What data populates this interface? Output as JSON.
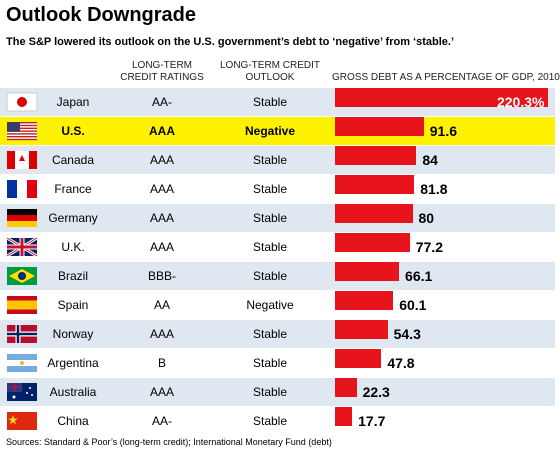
{
  "chart_data": {
    "type": "bar",
    "orientation": "horizontal",
    "title": "Outlook Downgrade",
    "subtitle": "The S&P lowered its outlook on the U.S. government’s debt to ‘negative’ from ‘stable.’",
    "column_headers": [
      "LONG-TERM CREDIT RATINGS",
      "LONG-TERM CREDIT OUTLOOK",
      "GROSS DEBT AS A PERCENTAGE OF GDP, 2010"
    ],
    "categories": [
      "Japan",
      "U.S.",
      "Canada",
      "France",
      "Germany",
      "U.K.",
      "Brazil",
      "Spain",
      "Norway",
      "Argentina",
      "Australia",
      "China"
    ],
    "ratings": [
      "AA-",
      "AAA",
      "AAA",
      "AAA",
      "AAA",
      "AAA",
      "BBB-",
      "AA",
      "AAA",
      "B",
      "AAA",
      "AA-"
    ],
    "outlooks": [
      "Stable",
      "Negative",
      "Stable",
      "Stable",
      "Stable",
      "Stable",
      "Stable",
      "Negative",
      "Stable",
      "Stable",
      "Stable",
      "Stable"
    ],
    "values": [
      220.3,
      91.6,
      84,
      81.8,
      80,
      77.2,
      66.1,
      60.1,
      54.3,
      47.8,
      22.3,
      17.7
    ],
    "value_labels": [
      "220.3%",
      "91.6",
      "84",
      "81.8",
      "80",
      "77.2",
      "66.1",
      "60.1",
      "54.3",
      "47.8",
      "22.3",
      "17.7"
    ],
    "xlim": [
      0,
      225
    ],
    "color": "#e8141c",
    "highlight": "U.S.",
    "highlight_color": "#fff200",
    "stripe_color": "#dfe7f0",
    "source": "Sources: Standard & Poor’s (long-term credit); International Monetary Fund (debt)"
  }
}
